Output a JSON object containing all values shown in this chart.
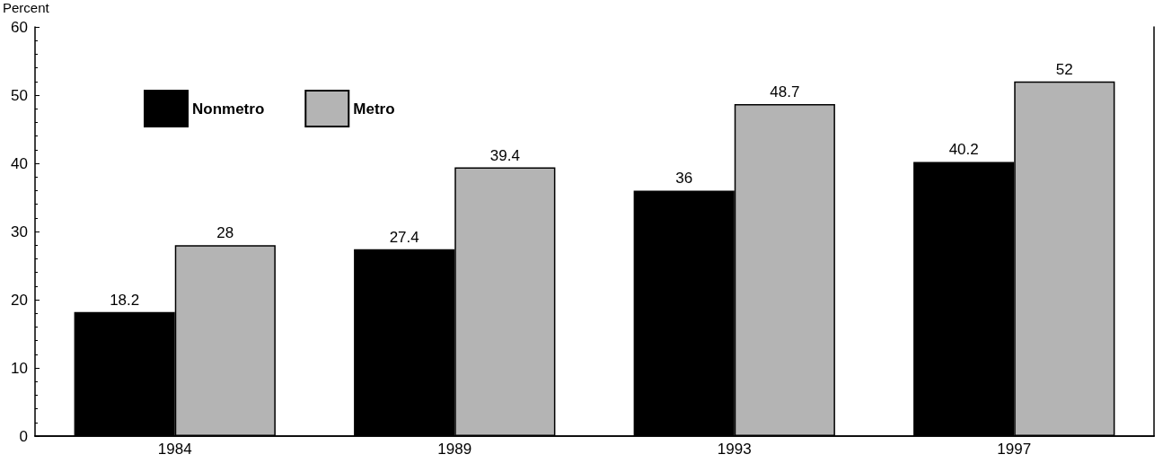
{
  "chart_data": {
    "type": "bar",
    "ylabel": "Percent",
    "categories": [
      "1984",
      "1989",
      "1993",
      "1997"
    ],
    "series": [
      {
        "name": "Nonmetro",
        "color": "#000000",
        "values": [
          18.2,
          27.4,
          36,
          40.2
        ]
      },
      {
        "name": "Metro",
        "color": "#b4b4b4",
        "values": [
          28,
          39.4,
          48.7,
          52
        ]
      }
    ],
    "ylim": [
      0,
      60
    ],
    "yticks": [
      0,
      10,
      20,
      30,
      40,
      50,
      60
    ],
    "grid": false,
    "legend": "top left",
    "data_labels": true
  }
}
